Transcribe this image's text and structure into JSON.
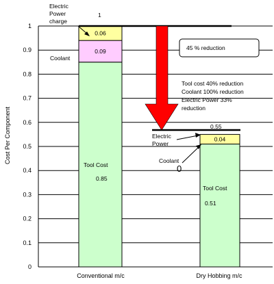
{
  "chart_data": {
    "type": "bar",
    "stacked": true,
    "title": "",
    "xlabel": "",
    "ylabel": "Cost Per Component",
    "ylim": [
      0,
      1
    ],
    "yticks": [
      "0",
      "0.1",
      "0.2",
      "0.3",
      "0.4",
      "0.5",
      "0.6",
      "0.7",
      "0.8",
      "0.9",
      "1"
    ],
    "grid": true,
    "categories": [
      "Conventional m/c",
      "Dry Hobbing m/c"
    ],
    "series": [
      {
        "name": "Tool Cost",
        "color": "#ccffcc",
        "values": [
          0.85,
          0.51
        ],
        "labels": [
          "0.85",
          "0.51"
        ]
      },
      {
        "name": "Coolant",
        "color": "#ffccff",
        "values": [
          0.09,
          0
        ],
        "labels": [
          "0.09",
          "0"
        ]
      },
      {
        "name": "Electric Power",
        "color": "#ffffa0",
        "values": [
          0.06,
          0.04
        ],
        "labels": [
          "0.06",
          "0.04"
        ]
      }
    ],
    "totals": [
      1,
      0.55
    ],
    "total_labels": [
      "1",
      "0.55"
    ],
    "annotations": {
      "bar1_tool": "Tool Cost",
      "bar1_coolant": "Coolant",
      "bar1_power": [
        "Electric",
        "Power",
        "charge"
      ],
      "bar2_tool": "Tool Cost",
      "bar2_coolant": "Coolant",
      "bar2_power": [
        "Electric",
        "Power"
      ],
      "reduction_box": "45 % reduction",
      "reduction_notes": [
        "Tool cost 40% reduction",
        "Coolant 100% reduction",
        "Electric Power 33%",
        " reduction"
      ]
    },
    "colors": {
      "arrow": "#ff0000",
      "grid": "#000000"
    }
  }
}
